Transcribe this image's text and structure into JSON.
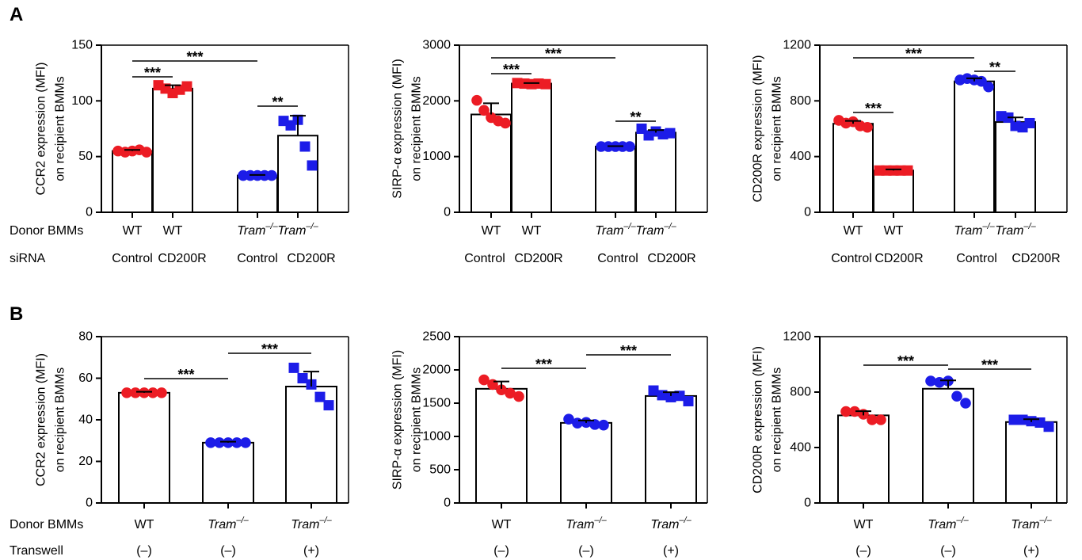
{
  "figure": {
    "panel_A_letter": "A",
    "panel_B_letter": "B",
    "row_labels": {
      "A_donor": "Donor BMMs",
      "A_condition": "siRNA",
      "B_donor": "Donor BMMs",
      "B_condition": "Transwell"
    }
  },
  "colors": {
    "red": "#ec1c24",
    "blue": "#1c1ce8",
    "bar_fill": "#ffffff",
    "axis": "#000000"
  },
  "chart_data": [
    {
      "type": "bar",
      "panel": "A",
      "ylabel": [
        "CCR2 expression (MFI)",
        "on recipient BMMs"
      ],
      "ylim": [
        0,
        150
      ],
      "yticks": [
        0,
        50,
        100,
        150
      ],
      "categories": [
        {
          "donor": {
            "label": "WT",
            "sup": ""
          },
          "condition": "Control",
          "color": "red",
          "marker": "circle"
        },
        {
          "donor": {
            "label": "WT",
            "sup": ""
          },
          "condition": "CD200R",
          "color": "red",
          "marker": "square"
        },
        {
          "donor": {
            "label": "Tram",
            "sup": "–/–"
          },
          "condition": "Control",
          "color": "blue",
          "marker": "circle"
        },
        {
          "donor": {
            "label": "Tram",
            "sup": "–/–"
          },
          "condition": "CD200R",
          "color": "blue",
          "marker": "square"
        }
      ],
      "means": [
        55,
        111,
        33,
        68.8
      ],
      "sd": [
        1,
        3,
        0.5,
        17.8
      ],
      "points": [
        [
          55,
          54,
          55,
          56,
          54
        ],
        [
          114,
          111,
          107,
          110,
          113
        ],
        [
          33,
          33,
          33,
          33,
          33
        ],
        [
          82,
          78,
          83,
          59,
          42
        ]
      ],
      "significance": [
        {
          "between": [
            0,
            2
          ],
          "label": "***"
        },
        {
          "between": [
            0,
            1
          ],
          "label": "***"
        },
        {
          "between": [
            2,
            3
          ],
          "label": "**"
        }
      ]
    },
    {
      "type": "bar",
      "panel": "A",
      "ylabel": [
        "SIRP-α expression (MFI)",
        "on recipient BMMs"
      ],
      "ylim": [
        0,
        3000
      ],
      "yticks": [
        0,
        1000,
        2000,
        3000
      ],
      "categories": [
        {
          "donor": {
            "label": "WT",
            "sup": ""
          },
          "condition": "Control",
          "color": "red",
          "marker": "circle"
        },
        {
          "donor": {
            "label": "WT",
            "sup": ""
          },
          "condition": "CD200R",
          "color": "red",
          "marker": "square"
        },
        {
          "donor": {
            "label": "Tram",
            "sup": "–/–"
          },
          "condition": "Control",
          "color": "blue",
          "marker": "circle"
        },
        {
          "donor": {
            "label": "Tram",
            "sup": "–/–"
          },
          "condition": "CD200R",
          "color": "blue",
          "marker": "square"
        }
      ],
      "means": [
        1756,
        2310,
        1180,
        1430
      ],
      "sd": [
        200,
        10,
        8,
        45
      ],
      "points": [
        [
          2010,
          1830,
          1700,
          1640,
          1600
        ],
        [
          2320,
          2310,
          2300,
          2310,
          2300
        ],
        [
          1180,
          1180,
          1180,
          1180,
          1180
        ],
        [
          1500,
          1380,
          1450,
          1400,
          1420
        ]
      ],
      "significance": [
        {
          "between": [
            0,
            2
          ],
          "label": "***"
        },
        {
          "between": [
            0,
            1
          ],
          "label": "***"
        },
        {
          "between": [
            2,
            3
          ],
          "label": "**"
        }
      ]
    },
    {
      "type": "bar",
      "panel": "A",
      "ylabel": [
        "CD200R expression (MFI)",
        "on recipient BMMs"
      ],
      "ylim": [
        0,
        1200
      ],
      "yticks": [
        0,
        400,
        800,
        1200
      ],
      "categories": [
        {
          "donor": {
            "label": "WT",
            "sup": ""
          },
          "condition": "Control",
          "color": "red",
          "marker": "circle"
        },
        {
          "donor": {
            "label": "WT",
            "sup": ""
          },
          "condition": "CD200R",
          "color": "red",
          "marker": "square"
        },
        {
          "donor": {
            "label": "Tram",
            "sup": "–/–"
          },
          "condition": "Control",
          "color": "blue",
          "marker": "circle"
        },
        {
          "donor": {
            "label": "Tram",
            "sup": "–/–"
          },
          "condition": "CD200R",
          "color": "blue",
          "marker": "square"
        }
      ],
      "means": [
        636,
        300,
        940,
        648
      ],
      "sd": [
        20,
        8,
        22,
        33
      ],
      "points": [
        [
          660,
          640,
          650,
          620,
          610
        ],
        [
          300,
          300,
          300,
          300,
          300
        ],
        [
          950,
          960,
          950,
          940,
          900
        ],
        [
          690,
          680,
          620,
          610,
          640
        ]
      ],
      "significance": [
        {
          "between": [
            0,
            2
          ],
          "label": "***"
        },
        {
          "between": [
            0,
            1
          ],
          "label": "***"
        },
        {
          "between": [
            2,
            3
          ],
          "label": "**"
        }
      ]
    },
    {
      "type": "bar",
      "panel": "B",
      "ylabel": [
        "CCR2 expression (MFI)",
        "on recipient BMMs"
      ],
      "ylim": [
        0,
        80
      ],
      "yticks": [
        0,
        20,
        40,
        60,
        80
      ],
      "categories": [
        {
          "donor": {
            "label": "WT",
            "sup": ""
          },
          "condition": "(–)",
          "color": "red",
          "marker": "circle"
        },
        {
          "donor": {
            "label": "Tram",
            "sup": "–/–"
          },
          "condition": "(–)",
          "color": "blue",
          "marker": "circle"
        },
        {
          "donor": {
            "label": "Tram",
            "sup": "–/–"
          },
          "condition": "(+)",
          "color": "blue",
          "marker": "square"
        }
      ],
      "means": [
        53,
        29,
        56
      ],
      "sd": [
        0.5,
        0.5,
        7.2
      ],
      "points": [
        [
          53,
          53,
          53,
          53,
          53
        ],
        [
          29,
          29,
          29,
          29,
          29
        ],
        [
          65,
          60,
          57,
          51,
          47
        ]
      ],
      "significance": [
        {
          "between": [
            0,
            1
          ],
          "label": "***"
        },
        {
          "between": [
            1,
            2
          ],
          "label": "***"
        }
      ]
    },
    {
      "type": "bar",
      "panel": "B",
      "ylabel": [
        "SIRP-α expression (MFI)",
        "on recipient BMMs"
      ],
      "ylim": [
        0,
        2500
      ],
      "yticks": [
        0,
        500,
        1000,
        1500,
        2000,
        2500
      ],
      "categories": [
        {
          "donor": {
            "label": "WT",
            "sup": ""
          },
          "condition": "(–)",
          "color": "red",
          "marker": "circle"
        },
        {
          "donor": {
            "label": "Tram",
            "sup": "–/–"
          },
          "condition": "(–)",
          "color": "blue",
          "marker": "circle"
        },
        {
          "donor": {
            "label": "Tram",
            "sup": "–/–"
          },
          "condition": "(+)",
          "color": "blue",
          "marker": "square"
        }
      ],
      "means": [
        1716,
        1204,
        1608
      ],
      "sd": [
        110,
        35,
        57
      ],
      "points": [
        [
          1850,
          1780,
          1700,
          1650,
          1600
        ],
        [
          1260,
          1200,
          1210,
          1180,
          1170
        ],
        [
          1690,
          1620,
          1590,
          1610,
          1530
        ]
      ],
      "significance": [
        {
          "between": [
            0,
            1
          ],
          "label": "***"
        },
        {
          "between": [
            1,
            2
          ],
          "label": "***"
        }
      ]
    },
    {
      "type": "bar",
      "panel": "B",
      "ylabel": [
        "CD200R expression (MFI)",
        "on recipient BMMs"
      ],
      "ylim": [
        0,
        1200
      ],
      "yticks": [
        0,
        400,
        800,
        1200
      ],
      "categories": [
        {
          "donor": {
            "label": "WT",
            "sup": ""
          },
          "condition": "(–)",
          "color": "red",
          "marker": "circle"
        },
        {
          "donor": {
            "label": "Tram",
            "sup": "–/–"
          },
          "condition": "(–)",
          "color": "blue",
          "marker": "circle"
        },
        {
          "donor": {
            "label": "Tram",
            "sup": "–/–"
          },
          "condition": "(+)",
          "color": "blue",
          "marker": "square"
        }
      ],
      "means": [
        632,
        824,
        584
      ],
      "sd": [
        30,
        60,
        20
      ],
      "points": [
        [
          660,
          660,
          640,
          600,
          600
        ],
        [
          880,
          870,
          880,
          770,
          720
        ],
        [
          600,
          600,
          590,
          580,
          550
        ]
      ],
      "significance": [
        {
          "between": [
            0,
            1
          ],
          "label": "***"
        },
        {
          "between": [
            1,
            2
          ],
          "label": "***"
        }
      ]
    }
  ]
}
